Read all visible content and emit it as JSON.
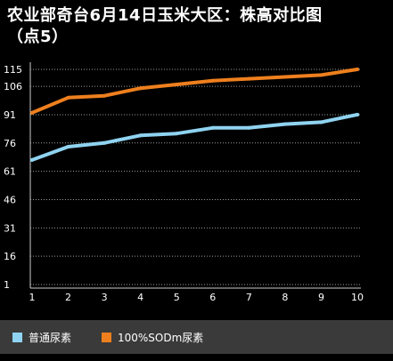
{
  "title_line1": "农业部奇台6月14日玉米大区：株高对比图",
  "title_line2": "（点5）",
  "chart_data": {
    "type": "line",
    "title": "农业部奇台6月14日玉米大区：株高对比图（点5）",
    "categories": [
      "1",
      "2",
      "3",
      "4",
      "5",
      "6",
      "7",
      "8",
      "9",
      "10"
    ],
    "y_ticks": [
      "1",
      "16",
      "31",
      "46",
      "61",
      "76",
      "91",
      "106",
      "115"
    ],
    "ylim": [
      1,
      117
    ],
    "grid": true,
    "legend_position": "bottom",
    "series": [
      {
        "name": "普通尿素",
        "color": "#8fd3f0",
        "values": [
          67,
          74,
          76,
          80,
          81,
          84,
          84,
          86,
          87,
          91
        ]
      },
      {
        "name": "100%SODm尿素",
        "color": "#ee7f1e",
        "values": [
          92,
          100,
          101,
          105,
          107,
          109,
          110,
          111,
          112,
          115
        ]
      }
    ]
  }
}
